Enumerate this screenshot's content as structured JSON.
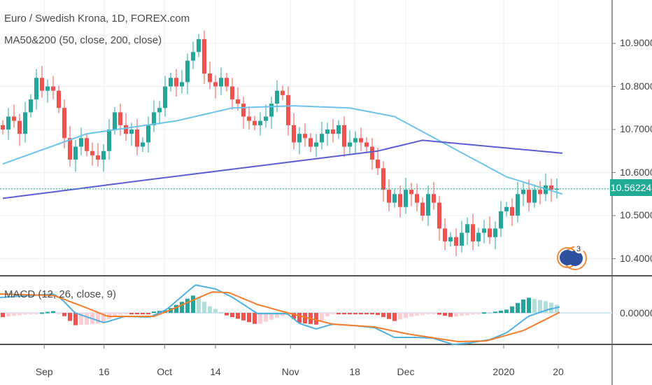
{
  "header": {
    "title": "Euro / Swedish Krona, 1D, FOREX.com",
    "ma_indicator": "MA50&200 (50, close, 200, close)",
    "macd_indicator": "MACD (12, 26, close, 9)"
  },
  "current_price": "10.56224",
  "logo_badge": "3",
  "colors": {
    "up": "#26a69a",
    "down": "#ef5350",
    "ma50": "#6ec3ea",
    "ma200": "#5a5ed0",
    "macd": "#4fb0de",
    "signal": "#f57d2e",
    "price_label": "#22ab94",
    "grid": "#e8eff7"
  },
  "chart_data": [
    {
      "type": "candlestick",
      "title": "Euro / Swedish Krona, 1D, FOREX.com",
      "ylim": [
        10.35,
        10.99
      ],
      "y_ticks": [
        "10.40000",
        "10.50000",
        "10.60000",
        "10.70000",
        "10.80000",
        "10.90000"
      ],
      "y_tick_values": [
        10.4,
        10.5,
        10.6,
        10.7,
        10.8,
        10.9
      ],
      "x_ticks": [
        {
          "label": "Sep",
          "bar": 7.4
        },
        {
          "label": "16",
          "bar": 18.1
        },
        {
          "label": "Oct",
          "bar": 28.9
        },
        {
          "label": "14",
          "bar": 38
        },
        {
          "label": "Nov",
          "bar": 51.4
        },
        {
          "label": "18",
          "bar": 62.9
        },
        {
          "label": "Dec",
          "bar": 72
        },
        {
          "label": "2020",
          "bar": 89.5
        },
        {
          "label": "20",
          "bar": 99.25
        }
      ],
      "closes": [
        10.7,
        10.73,
        10.72,
        10.69,
        10.74,
        10.77,
        10.82,
        10.79,
        10.8,
        10.79,
        10.75,
        10.68,
        10.63,
        10.66,
        10.68,
        10.65,
        10.64,
        10.63,
        10.65,
        10.7,
        10.74,
        10.71,
        10.69,
        10.7,
        10.66,
        10.67,
        10.71,
        10.74,
        10.75,
        10.8,
        10.82,
        10.8,
        10.81,
        10.86,
        10.88,
        10.91,
        10.83,
        10.81,
        10.8,
        10.82,
        10.8,
        10.77,
        10.76,
        10.73,
        10.72,
        10.71,
        10.72,
        10.73,
        10.76,
        10.79,
        10.78,
        10.71,
        10.67,
        10.69,
        10.68,
        10.66,
        10.67,
        10.69,
        10.7,
        10.69,
        10.71,
        10.66,
        10.67,
        10.68,
        10.67,
        10.66,
        10.63,
        10.61,
        10.56,
        10.53,
        10.55,
        10.52,
        10.56,
        10.55,
        10.53,
        10.5,
        10.55,
        10.53,
        10.47,
        10.44,
        10.45,
        10.43,
        10.46,
        10.48,
        10.44,
        10.46,
        10.47,
        10.45,
        10.47,
        10.51,
        10.52,
        10.5,
        10.55,
        10.56,
        10.53,
        10.56,
        10.55,
        10.57,
        10.56,
        10.56224
      ],
      "last_price": 10.56224,
      "ma50": [
        [
          0,
          10.62
        ],
        [
          15,
          10.69
        ],
        [
          31,
          10.72
        ],
        [
          41,
          10.75
        ],
        [
          52,
          10.755
        ],
        [
          62,
          10.75
        ],
        [
          70,
          10.73
        ],
        [
          80,
          10.66
        ],
        [
          90,
          10.59
        ],
        [
          100,
          10.55
        ]
      ],
      "ma200": [
        [
          0,
          10.54
        ],
        [
          30,
          10.59
        ],
        [
          67,
          10.65
        ],
        [
          75,
          10.675
        ],
        [
          100,
          10.645
        ]
      ]
    },
    {
      "type": "line",
      "title": "MACD (12, 26, close, 9)",
      "ylim": [
        -0.024,
        0.026
      ],
      "y_ticks": [
        "0.00000"
      ],
      "macd": [
        [
          -0.5,
          0.011
        ],
        [
          9.1,
          0.0135
        ],
        [
          10.6,
          0.0095
        ],
        [
          12.9,
          0
        ],
        [
          18.1,
          -0.007
        ],
        [
          21.8,
          -0.0025
        ],
        [
          26.3,
          -0.003
        ],
        [
          29.3,
          0.0025
        ],
        [
          34.4,
          0.02
        ],
        [
          38.1,
          0.017
        ],
        [
          41.1,
          0.011
        ],
        [
          45.5,
          -0.0005
        ],
        [
          50.8,
          -0.0005
        ],
        [
          53,
          -0.0075
        ],
        [
          56,
          -0.0115
        ],
        [
          58.9,
          -0.008
        ],
        [
          62.6,
          -0.009
        ],
        [
          66.4,
          -0.0105
        ],
        [
          70,
          -0.0175
        ],
        [
          73.8,
          -0.0175
        ],
        [
          76.8,
          -0.018
        ],
        [
          80.5,
          -0.0225
        ],
        [
          83.4,
          -0.0215
        ],
        [
          87.1,
          -0.019
        ],
        [
          90.1,
          -0.014
        ],
        [
          93.9,
          -0.0025
        ],
        [
          97.5,
          0.0025
        ],
        [
          99.8,
          0.0045
        ]
      ],
      "signal": [
        [
          -0.5,
          0.0135
        ],
        [
          9.1,
          0.0125
        ],
        [
          14.4,
          0.0045
        ],
        [
          18.8,
          -0.0025
        ],
        [
          27,
          -0.0025
        ],
        [
          29.3,
          0.001
        ],
        [
          37.4,
          0.015
        ],
        [
          40.4,
          0.0145
        ],
        [
          45.5,
          0.006
        ],
        [
          50,
          0.001
        ],
        [
          58.9,
          -0.008
        ],
        [
          66.4,
          -0.01
        ],
        [
          72.3,
          -0.015
        ],
        [
          81.3,
          -0.0205
        ],
        [
          86.4,
          -0.02
        ],
        [
          93.1,
          -0.0125
        ],
        [
          99.8,
          0.001
        ]
      ]
    }
  ]
}
